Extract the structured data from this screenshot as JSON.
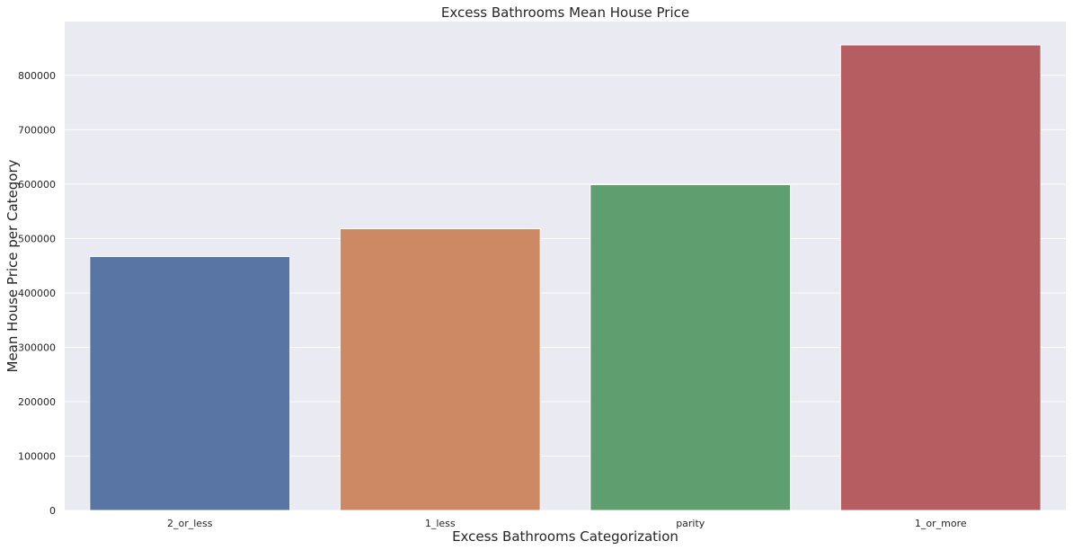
{
  "chart_data": {
    "type": "bar",
    "title": "Excess Bathrooms Mean House Price",
    "xlabel": "Excess Bathrooms Categorization",
    "ylabel": "Mean House Price per Category",
    "categories": [
      "2_or_less",
      "1_less",
      "parity",
      "1_or_more"
    ],
    "values": [
      467000,
      518000,
      599000,
      856000
    ],
    "colors": [
      "#5975a4",
      "#cc8963",
      "#5f9e6e",
      "#b55d60"
    ],
    "ylim": [
      0,
      899000
    ],
    "yticks": [
      0,
      100000,
      200000,
      300000,
      400000,
      500000,
      600000,
      700000,
      800000
    ],
    "ytick_labels": [
      "0",
      "100000",
      "200000",
      "300000",
      "400000",
      "500000",
      "600000",
      "700000",
      "800000"
    ],
    "grid": true,
    "background": "#eaeaf2",
    "grid_color": "#ffffff"
  }
}
